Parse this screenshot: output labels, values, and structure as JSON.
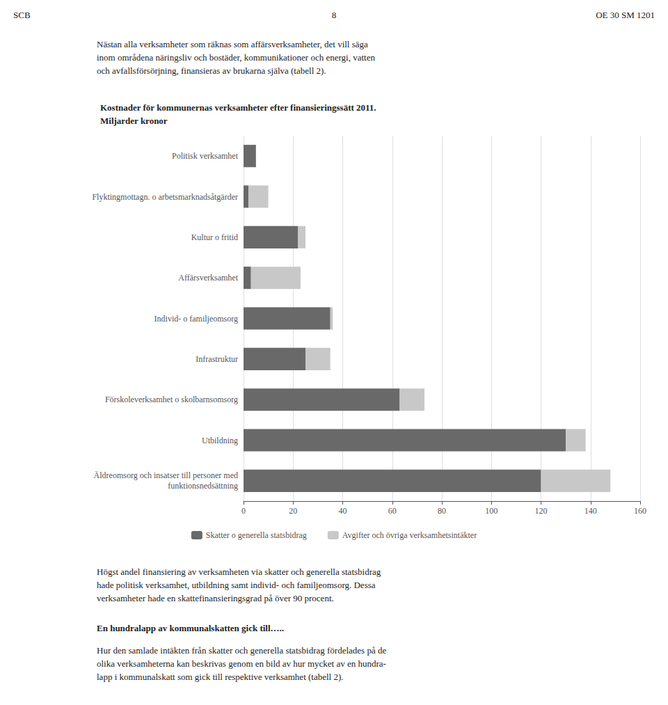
{
  "chart_data": {
    "type": "bar",
    "orientation": "horizontal",
    "stacked": true,
    "title": "Kostnader för kommunernas verksamheter efter finansieringssätt 2011.\nMiljarder kronor",
    "annotations": [
      "SCB",
      "8",
      "OE 30 SM 1201",
      "Nästan alla verksamheter som räknas som affärsverksamheter, det vill säga\ninom områdena näringsliv och bostäder, kommunikationer och energi, vatten\noch avfallsförsörjning, finansieras av brukarna själva (tabell 2).",
      "Högst andel finansiering av verksamheten via skatter och generella statsbidrag\nhade politisk verksamhet, utbildning samt individ- och familjeomsorg. Dessa\nverksamheter hade en skattefinansieringsgrad på över 90 procent.",
      "En hundralapp av kommunalskatten gick till…..",
      "Hur den samlade intäkten från skatter och generella statsbidrag fördelades på de\nolika verksamheterna kan beskrivas genom en bild av hur mycket av en hundra-\nlapp i kommunalskatt som gick till respektive verksamhet (tabell 2)."
    ],
    "categories": [
      "Politisk verksamhet",
      "Flyktingmottagn. o arbetsmarknadsåtgärder",
      "Kultur o fritid",
      "Affärsverksamhet",
      "Individ- o familjeomsorg",
      "Infrastruktur",
      "Förskoleverksamhet o skolbarnsomsorg",
      "Utbildning",
      "Äldreomsorg och insatser till personer med\nfunktionsnedsättning"
    ],
    "series": [
      {
        "name": "Skatter o generella statsbidrag",
        "color": "#696969",
        "values": [
          5,
          2,
          22,
          3,
          35,
          25,
          63,
          130,
          120
        ]
      },
      {
        "name": "Avgifter och övriga verksamhetsintäkter",
        "color": "#c8c8c8",
        "values": [
          0,
          8,
          3,
          20,
          1,
          10,
          10,
          8,
          28
        ]
      }
    ],
    "xlim": [
      0,
      160
    ],
    "xticks": [
      0,
      20,
      40,
      60,
      80,
      100,
      120,
      140,
      160
    ],
    "grid": true
  }
}
